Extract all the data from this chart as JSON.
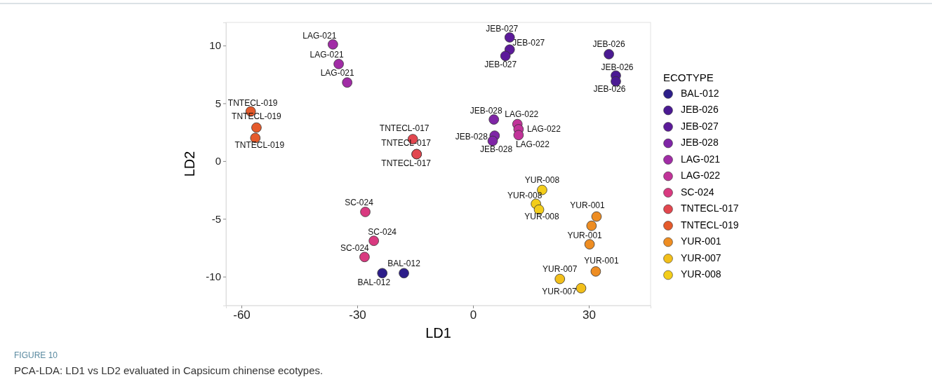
{
  "chart_data": {
    "type": "scatter",
    "xlabel": "LD1",
    "ylabel": "LD2",
    "legend_title": "ECOTYPE",
    "legend": "right",
    "marker": "circle",
    "grid": false,
    "xlim": [
      -64,
      46
    ],
    "ylim": [
      -12.5,
      12
    ],
    "xticks": [
      -60,
      -30,
      0,
      30
    ],
    "yticks": [
      -10,
      -5,
      0,
      5,
      10
    ],
    "series": [
      {
        "name": "BAL-012",
        "color": "#2d1e8a",
        "x": [
          -23.5,
          -17.9
        ],
        "values": [
          -9.7,
          -9.7
        ],
        "value_labels": [
          "BAL-012",
          "BAL-012"
        ]
      },
      {
        "name": "JEB-026",
        "color": "#4b1a93",
        "x": [
          35.2,
          37.0,
          37.0
        ],
        "values": [
          9.25,
          7.4,
          6.9
        ],
        "value_labels": [
          "JEB-026",
          "JEB-026",
          "JEB-026"
        ]
      },
      {
        "name": "JEB-027",
        "color": "#5c1a9a",
        "x": [
          9.5,
          9.5,
          8.4
        ],
        "values": [
          10.7,
          9.65,
          9.1
        ],
        "value_labels": [
          "JEB-027",
          "JEB-027",
          "JEB-027"
        ]
      },
      {
        "name": "JEB-028",
        "color": "#7f25a6",
        "x": [
          5.4,
          5.6,
          5.1
        ],
        "values": [
          3.6,
          2.2,
          1.75
        ],
        "value_labels": [
          "JEB-028",
          "JEB-028",
          "JEB-028"
        ]
      },
      {
        "name": "LAG-021",
        "color": "#a12ca6",
        "x": [
          -36.3,
          -34.8,
          -32.6
        ],
        "values": [
          10.1,
          8.4,
          6.8
        ],
        "value_labels": [
          "LAG-021",
          "LAG-021",
          "LAG-021"
        ]
      },
      {
        "name": "LAG-022",
        "color": "#c13399",
        "x": [
          11.5,
          11.8,
          11.8
        ],
        "values": [
          3.2,
          2.75,
          2.25
        ],
        "value_labels": [
          "LAG-022",
          "LAG-022",
          "LAG-022"
        ]
      },
      {
        "name": "SC-024",
        "color": "#d93a80",
        "x": [
          -27.9,
          -25.7,
          -28.1
        ],
        "values": [
          -4.4,
          -6.9,
          -8.3
        ],
        "value_labels": [
          "SC-024",
          "SC-024",
          "SC-024"
        ]
      },
      {
        "name": "TNTECL-017",
        "color": "#e2474f",
        "x": [
          -15.6,
          -14.6,
          -14.6
        ],
        "values": [
          1.9,
          0.6,
          0.6
        ],
        "value_labels": [
          "TNTECL-017",
          "TNTECL-017",
          "TNTECL-017"
        ]
      },
      {
        "name": "TNTECL-019",
        "color": "#e55a2b",
        "x": [
          -57.6,
          -56.1,
          -56.4
        ],
        "values": [
          4.3,
          2.9,
          2.0
        ],
        "value_labels": [
          "TNTECL-019",
          "TNTECL-019",
          "TNTECL-019"
        ]
      },
      {
        "name": "YUR-001",
        "color": "#ee8d22",
        "x": [
          32.0,
          30.7,
          30.2,
          31.8
        ],
        "values": [
          -4.8,
          -5.6,
          -7.2,
          -9.55
        ],
        "value_labels": [
          "YUR-001",
          null,
          "YUR-001",
          "YUR-001"
        ]
      },
      {
        "name": "YUR-007",
        "color": "#f2bf1a",
        "x": [
          22.5,
          28.0
        ],
        "values": [
          -10.2,
          -11.0
        ],
        "value_labels": [
          "YUR-007",
          "YUR-007"
        ]
      },
      {
        "name": "YUR-008",
        "color": "#f3cd1a",
        "x": [
          17.9,
          16.3,
          17.1
        ],
        "values": [
          -2.5,
          -3.7,
          -4.2
        ],
        "value_labels": [
          "YUR-008",
          "YUR-008",
          "YUR-008"
        ]
      }
    ],
    "annotations": [
      "FIGURE 10",
      "PCA-LDA: LD1 vs LD2 evaluated in Capsicum chinense ecotypes."
    ]
  }
}
